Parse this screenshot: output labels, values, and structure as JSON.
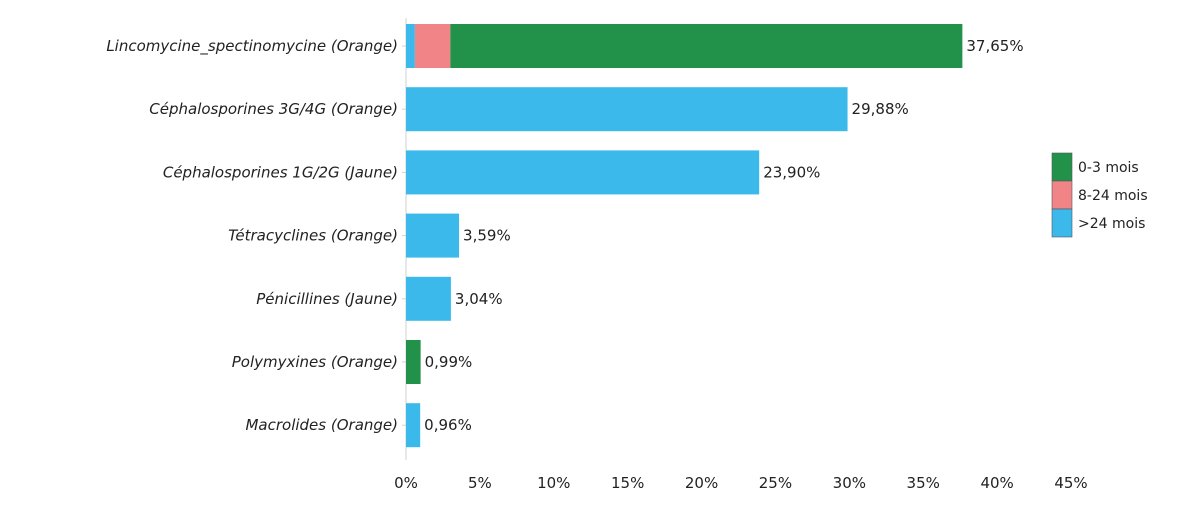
{
  "colors": {
    "green": "#22924a",
    "pink": "#f08486",
    "blue": "#3bb9eb",
    "axis": "#d0d0d0"
  },
  "chart_data": {
    "type": "bar",
    "orientation": "horizontal",
    "stacked": true,
    "categories": [
      "Lincomycine_spectinomycine (Orange)",
      "Céphalosporines 3G/4G (Orange)",
      "Céphalosporines 1G/2G (Jaune)",
      "Tétracyclines (Orange)",
      "Pénicillines (Jaune)",
      "Polymyxines (Orange)",
      "Macrolides (Orange)"
    ],
    "series": [
      {
        "name": ">24 mois",
        "color": "#3bb9eb",
        "values": [
          0.6,
          29.88,
          23.9,
          3.59,
          3.04,
          0,
          0.96
        ]
      },
      {
        "name": "8-24 mois",
        "color": "#f08486",
        "values": [
          2.4,
          0,
          0,
          0,
          0,
          0,
          0
        ]
      },
      {
        "name": "0-3 mois",
        "color": "#22924a",
        "values": [
          34.65,
          0,
          0,
          0,
          0,
          0.99,
          0
        ]
      }
    ],
    "totals": [
      37.65,
      29.88,
      23.9,
      3.59,
      3.04,
      0.99,
      0.96
    ],
    "total_labels": [
      "37,65%",
      "29,88%",
      "23,90%",
      "3,59%",
      "3,04%",
      "0,99%",
      "0,96%"
    ],
    "xlim": [
      0,
      45
    ],
    "xticks": [
      0,
      5,
      10,
      15,
      20,
      25,
      30,
      35,
      40,
      45
    ],
    "xtick_labels": [
      "0%",
      "5%",
      "10%",
      "15%",
      "20%",
      "25%",
      "30%",
      "35%",
      "40%",
      "45%"
    ],
    "legend": {
      "position": "right",
      "entries": [
        {
          "label": "0-3 mois",
          "color": "#22924a"
        },
        {
          "label": "8-24 mois",
          "color": "#f08486"
        },
        {
          "label": ">24 mois",
          "color": "#3bb9eb"
        }
      ]
    },
    "grid": false
  }
}
